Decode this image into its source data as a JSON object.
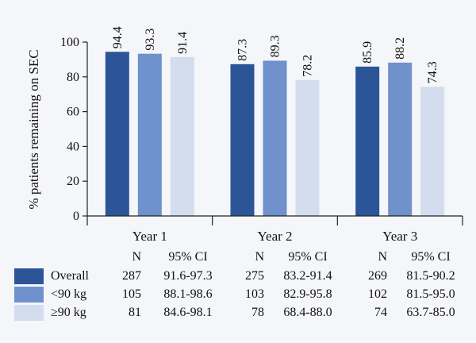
{
  "chart_data": {
    "type": "bar",
    "ylabel": "% patients remaining on SEC",
    "ylim": [
      0,
      100
    ],
    "yticks": [
      "0",
      "20",
      "40",
      "60",
      "80",
      "100"
    ],
    "categories": [
      "Year 1",
      "Year 2",
      "Year 3"
    ],
    "series": [
      {
        "name": "Overall",
        "color": "#2b5597",
        "values": [
          94.4,
          87.3,
          85.9
        ],
        "labels": [
          "94.4",
          "87.3",
          "85.9"
        ]
      },
      {
        "name": "<90 kg",
        "color": "#6f91cc",
        "values": [
          93.3,
          89.3,
          88.2
        ],
        "labels": [
          "93.3",
          "89.3",
          "88.2"
        ]
      },
      {
        "name": "≥90 kg",
        "color": "#d3ddee",
        "values": [
          91.4,
          78.2,
          74.3
        ],
        "labels": [
          "91.4",
          "78.2",
          "74.3"
        ]
      }
    ]
  },
  "table": {
    "n_header": "N",
    "ci_header": "95% CI",
    "rows": [
      {
        "label": "Overall",
        "color": "#2b5597",
        "n": [
          "287",
          "275",
          "269"
        ],
        "ci": [
          "91.6-97.3",
          "83.2-91.4",
          "81.5-90.2"
        ]
      },
      {
        "label": "<90 kg",
        "color": "#6f91cc",
        "n": [
          "105",
          "103",
          "102"
        ],
        "ci": [
          "88.1-98.6",
          "82.9-95.8",
          "81.5-95.0"
        ]
      },
      {
        "label": "≥90 kg",
        "color": "#d3ddee",
        "n": [
          "81",
          "78",
          "74"
        ],
        "ci": [
          "84.6-98.1",
          "68.4-88.0",
          "63.7-85.0"
        ]
      }
    ]
  }
}
